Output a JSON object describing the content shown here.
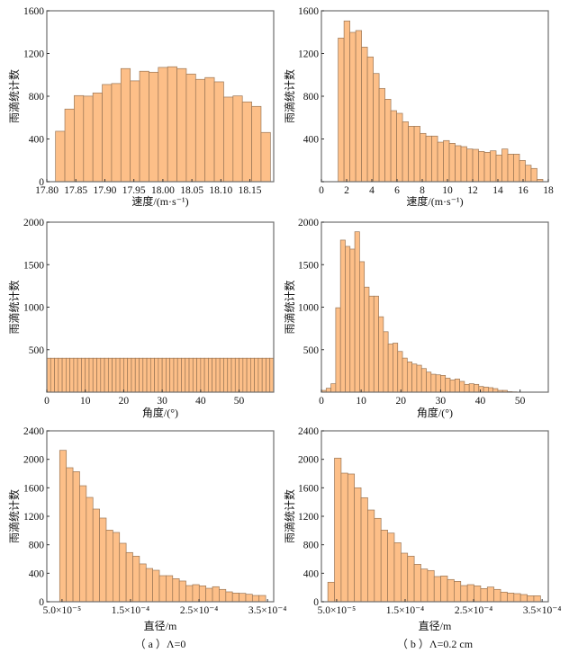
{
  "colors": {
    "bar_fill": "#fdbf88",
    "bar_edge": "#9a7656",
    "frame": "#6e6e6e"
  },
  "captions": [
    "（ a ）Λ=0",
    "（ b ）Λ=0.2 cm"
  ],
  "chart_data": [
    {
      "id": "velocity-a",
      "type": "bar",
      "title": "",
      "xlabel": "速度/(m·s⁻¹)",
      "ylabel": "雨滴统计数",
      "xlim": [
        17.8,
        18.191
      ],
      "ylim": [
        0,
        1600
      ],
      "xticks": [
        17.8,
        17.85,
        17.9,
        17.95,
        18.0,
        18.05,
        18.1,
        18.15
      ],
      "xtick_labels": [
        "17.80",
        "17.85",
        "17.90",
        "17.95",
        "18.00",
        "18.05",
        "18.10",
        "18.15"
      ],
      "yticks": [
        0,
        400,
        800,
        1200,
        1600
      ],
      "ytick_labels": [
        "0",
        "400",
        "800",
        "1200",
        "1600"
      ],
      "bin_start": 17.815,
      "bin_width": 0.0161,
      "values": [
        472,
        680,
        806,
        801,
        831,
        910,
        919,
        1059,
        944,
        1034,
        1025,
        1070,
        1076,
        1059,
        1008,
        958,
        975,
        935,
        792,
        803,
        747,
        705,
        461
      ],
      "grid": false
    },
    {
      "id": "velocity-b",
      "type": "bar",
      "title": "",
      "xlabel": "速度/(m·s⁻¹)",
      "ylabel": "雨滴统计数",
      "xlim": [
        0,
        18
      ],
      "ylim": [
        0,
        1600
      ],
      "xticks": [
        0,
        2,
        4,
        6,
        8,
        10,
        12,
        14,
        16,
        18
      ],
      "xtick_labels": [
        "0",
        "2",
        "4",
        "6",
        "8",
        "10",
        "12",
        "14",
        "16",
        "18"
      ],
      "yticks": [
        0,
        400,
        800,
        1200,
        1600
      ],
      "ytick_labels": [
        "",
        "400",
        "800",
        "1200",
        "1600"
      ],
      "bin_start": 1.33,
      "bin_width": 0.464,
      "values": [
        1345,
        1505,
        1398,
        1415,
        1260,
        1168,
        1013,
        873,
        772,
        665,
        640,
        561,
        519,
        519,
        452,
        427,
        427,
        370,
        385,
        359,
        337,
        328,
        306,
        303,
        283,
        275,
        289,
        250,
        306,
        258,
        258,
        199,
        154,
        124,
        22
      ],
      "grid": false
    },
    {
      "id": "angle-a",
      "type": "bar",
      "title": "",
      "xlabel": "角度/(°)",
      "ylabel": "雨滴统计数",
      "xlim": [
        0,
        59
      ],
      "ylim": [
        0,
        2000
      ],
      "xticks": [
        0,
        10,
        20,
        30,
        40,
        50
      ],
      "xtick_labels": [
        "0",
        "10",
        "20",
        "30",
        "40",
        "50"
      ],
      "yticks": [
        500,
        1000,
        1500,
        2000
      ],
      "ytick_labels": [
        "500",
        "1000",
        "1500",
        "2000"
      ],
      "bin_start": 0,
      "bin_width": 1,
      "values": [
        400,
        400,
        400,
        400,
        400,
        400,
        400,
        400,
        400,
        400,
        400,
        400,
        400,
        400,
        400,
        400,
        400,
        400,
        400,
        400,
        400,
        400,
        400,
        400,
        400,
        400,
        400,
        400,
        400,
        400,
        400,
        400,
        400,
        400,
        400,
        400,
        400,
        400,
        400,
        400,
        400,
        400,
        400,
        400,
        400,
        400,
        400,
        400,
        400,
        400,
        400,
        400,
        400,
        400,
        400,
        400,
        400,
        400,
        400
      ],
      "grid": false
    },
    {
      "id": "angle-b",
      "type": "bar",
      "title": "",
      "xlabel": "角度/(°)",
      "ylabel": "雨滴统计数",
      "xlim": [
        0,
        57.1
      ],
      "ylim": [
        0,
        2000
      ],
      "xticks": [
        0,
        10,
        20,
        30,
        40,
        50
      ],
      "xtick_labels": [
        "0",
        "10",
        "20",
        "30",
        "40",
        "50"
      ],
      "yticks": [
        500,
        1000,
        1500,
        2000
      ],
      "ytick_labels": [
        "500",
        "1000",
        "1500",
        "2000"
      ],
      "bin_start": 0,
      "bin_width": 1.2,
      "values": [
        21,
        46,
        99,
        993,
        1789,
        1715,
        1683,
        1887,
        1535,
        1236,
        1130,
        1130,
        887,
        711,
        567,
        577,
        479,
        401,
        356,
        331,
        317,
        278,
        236,
        211,
        204,
        197,
        165,
        144,
        155,
        127,
        92,
        99,
        92,
        67,
        60,
        53,
        42,
        21,
        21,
        7,
        4
      ],
      "grid": false
    },
    {
      "id": "diameter-a",
      "type": "bar",
      "title": "",
      "xlabel": "直径/m",
      "ylabel": "雨滴统计数",
      "xlim": [
        2.78e-05,
        0.000359
      ],
      "ylim": [
        0,
        2400
      ],
      "xticks": [
        5e-05,
        0.00015,
        0.00025,
        0.00035
      ],
      "xtick_labels": [
        "5.0×10⁻⁵",
        "1.5×10⁻⁴",
        "2.5×10⁻⁴",
        "3.5×10⁻⁴"
      ],
      "yticks": [
        0,
        400,
        800,
        1200,
        1600,
        2000,
        2400
      ],
      "ytick_labels": [
        "0",
        "400",
        "800",
        "1200",
        "1600",
        "2000",
        "2400"
      ],
      "bin_start": 4.66e-05,
      "bin_width": 9.7e-06,
      "values": [
        2126,
        1882,
        1827,
        1629,
        1465,
        1301,
        1175,
        1006,
        973,
        821,
        691,
        640,
        531,
        467,
        442,
        366,
        366,
        324,
        291,
        227,
        240,
        223,
        189,
        211,
        173,
        139,
        122,
        118,
        105,
        88,
        88
      ],
      "grid": false
    },
    {
      "id": "diameter-b",
      "type": "bar",
      "title": "",
      "xlabel": "直径/m",
      "ylabel": "雨滴统计数",
      "xlim": [
        2.78e-05,
        0.000359
      ],
      "ylim": [
        0,
        2400
      ],
      "xticks": [
        5e-05,
        0.00015,
        0.00025,
        0.00035
      ],
      "xtick_labels": [
        "5.0×10⁻⁵",
        "1.5×10⁻⁴",
        "2.5×10⁻⁴",
        "3.5×10⁻⁴"
      ],
      "yticks": [
        0,
        400,
        800,
        1200,
        1600,
        2000,
        2400
      ],
      "ytick_labels": [
        "0",
        "400",
        "800",
        "1200",
        "1600",
        "2000",
        "2400"
      ],
      "bin_start": 3.72e-05,
      "bin_width": 9.7e-06,
      "values": [
        274,
        2017,
        1806,
        1794,
        1600,
        1461,
        1288,
        1171,
        1006,
        964,
        829,
        682,
        640,
        526,
        459,
        438,
        354,
        362,
        312,
        286,
        227,
        240,
        223,
        185,
        206,
        173,
        135,
        122,
        114,
        101,
        84,
        84
      ],
      "grid": false
    }
  ]
}
